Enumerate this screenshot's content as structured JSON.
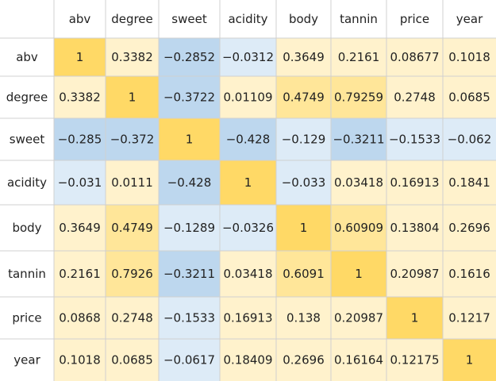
{
  "chart_data": {
    "type": "heatmap",
    "title": "",
    "xlabel": "",
    "ylabel": "",
    "legend": "none",
    "grid": true,
    "columns": [
      "abv",
      "degree",
      "sweet",
      "acidity",
      "body",
      "tannin",
      "price",
      "year"
    ],
    "rows": [
      "abv",
      "degree",
      "sweet",
      "acidity",
      "body",
      "tannin",
      "price",
      "year"
    ],
    "labels": [
      [
        "1",
        "0.3382",
        "-0.2852",
        "-0.0312",
        "0.3649",
        "0.2161",
        "0.08677",
        "0.1018"
      ],
      [
        "0.3382",
        "1",
        "-0.3722",
        "0.01109",
        "0.4749",
        "0.79259",
        "0.2748",
        "0.0685"
      ],
      [
        "-0.285",
        "-0.372",
        "1",
        "-0.428",
        "-0.129",
        "-0.3211",
        "-0.1533",
        "-0.062"
      ],
      [
        "-0.031",
        "0.0111",
        "-0.428",
        "1",
        "-0.033",
        "0.03418",
        "0.16913",
        "0.1841"
      ],
      [
        "0.3649",
        "0.4749",
        "-0.1289",
        "-0.0326",
        "1",
        "0.60909",
        "0.13804",
        "0.2696"
      ],
      [
        "0.2161",
        "0.7926",
        "-0.3211",
        "0.03418",
        "0.6091",
        "1",
        "0.20987",
        "0.1616"
      ],
      [
        "0.0868",
        "0.2748",
        "-0.1533",
        "0.16913",
        "0.138",
        "0.20987",
        "1",
        "0.1217"
      ],
      [
        "0.1018",
        "0.0685",
        "-0.0617",
        "0.18409",
        "0.2696",
        "0.16164",
        "0.12175",
        "1"
      ]
    ],
    "values": [
      [
        1,
        0.3382,
        -0.2852,
        -0.0312,
        0.3649,
        0.2161,
        0.08677,
        0.1018
      ],
      [
        0.3382,
        1,
        -0.3722,
        0.01109,
        0.4749,
        0.79259,
        0.2748,
        0.0685
      ],
      [
        -0.285,
        -0.372,
        1,
        -0.428,
        -0.129,
        -0.3211,
        -0.1533,
        -0.062
      ],
      [
        -0.031,
        0.0111,
        -0.428,
        1,
        -0.033,
        0.03418,
        0.16913,
        0.1841
      ],
      [
        0.3649,
        0.4749,
        -0.1289,
        -0.0326,
        1,
        0.60909,
        0.13804,
        0.2696
      ],
      [
        0.2161,
        0.7926,
        -0.3211,
        0.03418,
        0.6091,
        1,
        0.20987,
        0.1616
      ],
      [
        0.0868,
        0.2748,
        -0.1533,
        0.16913,
        0.138,
        0.20987,
        1,
        0.1217
      ],
      [
        0.1018,
        0.0685,
        -0.0617,
        0.18409,
        0.2696,
        0.16164,
        0.12175,
        1
      ]
    ],
    "colors": {
      "diagonal": "#FFD966",
      "strong_positive": "#FFE699",
      "positive": "#FFF2CC",
      "weak_negative": "#DDEBF7",
      "strong_negative": "#BDD7EE",
      "header_background": "#FFFFFF",
      "grid_line": "#D0D0D0"
    }
  }
}
